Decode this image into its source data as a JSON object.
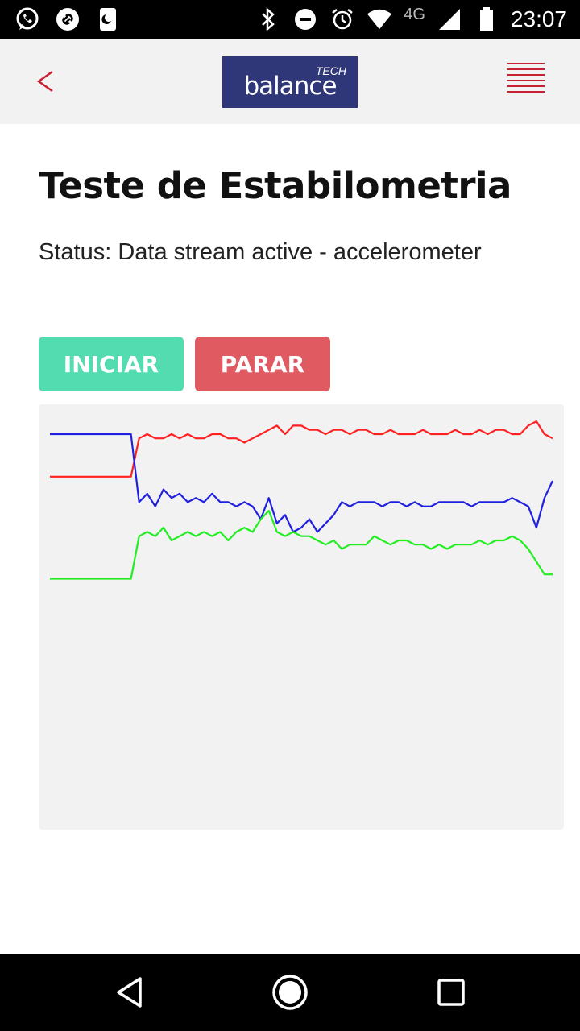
{
  "status_bar": {
    "network_label": "4G",
    "time": "23:07",
    "left_icons": [
      "whatsapp-icon",
      "link-icon",
      "moon-phone-icon"
    ],
    "right_icons": [
      "bluetooth-icon",
      "do-not-disturb-icon",
      "alarm-icon",
      "wifi-icon",
      "signal-icon",
      "battery-icon"
    ]
  },
  "header": {
    "logo_text": "balance",
    "logo_tag": "TECH",
    "logo_color": "#2f3779",
    "accent_color": "#c62232",
    "back_icon": "chevron-left-icon",
    "menu_icon": "menu-icon"
  },
  "page": {
    "title": "Teste de Estabilometria",
    "status_text": "Status: Data stream active - accelerometer"
  },
  "buttons": {
    "start_label": "INICIAR",
    "start_color": "#52dcb0",
    "stop_label": "PARAR",
    "stop_color": "#e05a62"
  },
  "chart_data": {
    "type": "line",
    "title": "",
    "xlabel": "",
    "ylabel": "",
    "grid": false,
    "legend": "none",
    "x": [
      0,
      1,
      2,
      3,
      4,
      5,
      6,
      7,
      8,
      9,
      10,
      11,
      12,
      13,
      14,
      15,
      16,
      17,
      18,
      19,
      20,
      21,
      22,
      23,
      24,
      25,
      26,
      27,
      28,
      29,
      30,
      31,
      32,
      33,
      34,
      35,
      36,
      37,
      38,
      39,
      40,
      41,
      42,
      43,
      44,
      45,
      46,
      47,
      48,
      49,
      50,
      51,
      52,
      53,
      54,
      55,
      56,
      57,
      58,
      59,
      60,
      61,
      62
    ],
    "ylim": [
      0,
      1
    ],
    "series": [
      {
        "color": "#ff2020",
        "values": [
          0.83,
          0.83,
          0.83,
          0.83,
          0.83,
          0.83,
          0.83,
          0.83,
          0.83,
          0.83,
          0.83,
          0.92,
          0.93,
          0.92,
          0.92,
          0.93,
          0.92,
          0.93,
          0.92,
          0.92,
          0.93,
          0.93,
          0.92,
          0.92,
          0.91,
          0.92,
          0.93,
          0.94,
          0.95,
          0.93,
          0.95,
          0.95,
          0.94,
          0.94,
          0.93,
          0.94,
          0.94,
          0.93,
          0.94,
          0.94,
          0.93,
          0.93,
          0.94,
          0.93,
          0.93,
          0.93,
          0.94,
          0.93,
          0.93,
          0.93,
          0.94,
          0.93,
          0.93,
          0.94,
          0.93,
          0.94,
          0.94,
          0.93,
          0.93,
          0.95,
          0.96,
          0.93,
          0.92
        ]
      },
      {
        "color": "#2020e0",
        "values": [
          0.93,
          0.93,
          0.93,
          0.93,
          0.93,
          0.93,
          0.93,
          0.93,
          0.93,
          0.93,
          0.93,
          0.77,
          0.79,
          0.76,
          0.8,
          0.78,
          0.79,
          0.77,
          0.78,
          0.77,
          0.79,
          0.77,
          0.77,
          0.76,
          0.77,
          0.76,
          0.73,
          0.78,
          0.72,
          0.74,
          0.7,
          0.71,
          0.73,
          0.7,
          0.72,
          0.74,
          0.77,
          0.76,
          0.77,
          0.77,
          0.77,
          0.76,
          0.77,
          0.77,
          0.76,
          0.77,
          0.76,
          0.76,
          0.77,
          0.77,
          0.77,
          0.77,
          0.76,
          0.77,
          0.77,
          0.77,
          0.77,
          0.78,
          0.77,
          0.76,
          0.71,
          0.78,
          0.82
        ]
      },
      {
        "color": "#22ee22",
        "values": [
          0.59,
          0.59,
          0.59,
          0.59,
          0.59,
          0.59,
          0.59,
          0.59,
          0.59,
          0.59,
          0.59,
          0.69,
          0.7,
          0.69,
          0.71,
          0.68,
          0.69,
          0.7,
          0.69,
          0.7,
          0.69,
          0.7,
          0.68,
          0.7,
          0.71,
          0.7,
          0.73,
          0.75,
          0.7,
          0.69,
          0.7,
          0.69,
          0.69,
          0.68,
          0.67,
          0.68,
          0.66,
          0.67,
          0.67,
          0.67,
          0.69,
          0.68,
          0.67,
          0.68,
          0.68,
          0.67,
          0.67,
          0.66,
          0.67,
          0.66,
          0.67,
          0.67,
          0.67,
          0.68,
          0.67,
          0.68,
          0.68,
          0.69,
          0.68,
          0.66,
          0.63,
          0.6,
          0.6
        ]
      }
    ]
  }
}
